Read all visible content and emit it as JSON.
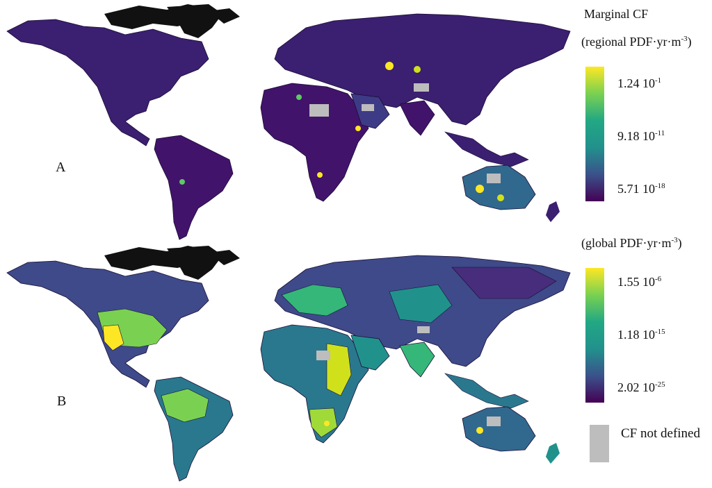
{
  "panels": [
    {
      "label": "A"
    },
    {
      "label": "B"
    }
  ],
  "legend": {
    "title": "Marginal CF",
    "regional": {
      "unit_prefix": "(regional PDF·yr·m",
      "unit_exp": "-3",
      "unit_suffix": ")",
      "ticks": [
        {
          "mantissa": "1.24 10",
          "exp": "-1"
        },
        {
          "mantissa": "9.18 10",
          "exp": "-11"
        },
        {
          "mantissa": "5.71 10",
          "exp": "-18"
        }
      ]
    },
    "global": {
      "unit_prefix": "(global PDF·yr·m",
      "unit_exp": "-3",
      "unit_suffix": ")",
      "ticks": [
        {
          "mantissa": "1.55 10",
          "exp": "-6"
        },
        {
          "mantissa": "1.18 10",
          "exp": "-15"
        },
        {
          "mantissa": "2.02 10",
          "exp": "-25"
        }
      ]
    },
    "not_defined": "CF not defined",
    "colors": {
      "viridis_top": "#fde725",
      "viridis_mid": "#21918c",
      "viridis_bottom": "#440154",
      "not_defined": "#bdbdbd",
      "ocean": "#ffffff"
    }
  }
}
